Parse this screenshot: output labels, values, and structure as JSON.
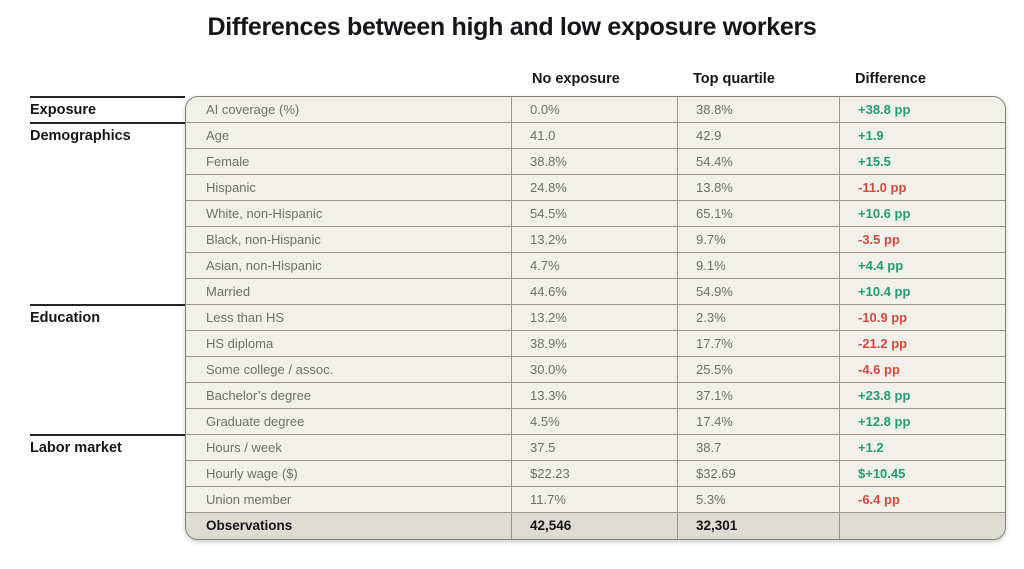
{
  "title": "Differences between high and low exposure workers",
  "colors": {
    "positive": "#279b72",
    "negative": "#d24b41"
  },
  "chart_data": {
    "type": "table",
    "title": "Differences between high and low exposure workers",
    "columns": [
      "No exposure",
      "Top quartile",
      "Difference"
    ],
    "groups": [
      {
        "label": "Exposure",
        "rows": [
          {
            "label": "AI coverage (%)",
            "no_exposure": "0.0%",
            "top_quartile": "38.8%",
            "difference": "+38.8 pp",
            "trend": "positive"
          }
        ]
      },
      {
        "label": "Demographics",
        "rows": [
          {
            "label": "Age",
            "no_exposure": "41.0",
            "top_quartile": "42.9",
            "difference": "+1.9",
            "trend": "positive"
          },
          {
            "label": "Female",
            "no_exposure": "38.8%",
            "top_quartile": "54.4%",
            "difference": "+15.5",
            "trend": "positive"
          },
          {
            "label": "Hispanic",
            "no_exposure": "24.8%",
            "top_quartile": "13.8%",
            "difference": "-11.0 pp",
            "trend": "negative"
          },
          {
            "label": "White, non-Hispanic",
            "no_exposure": "54.5%",
            "top_quartile": "65.1%",
            "difference": "+10.6 pp",
            "trend": "positive"
          },
          {
            "label": "Black, non-Hispanic",
            "no_exposure": "13.2%",
            "top_quartile": "9.7%",
            "difference": "-3.5 pp",
            "trend": "negative"
          },
          {
            "label": "Asian, non-Hispanic",
            "no_exposure": "4.7%",
            "top_quartile": "9.1%",
            "difference": "+4.4 pp",
            "trend": "positive"
          },
          {
            "label": "Married",
            "no_exposure": "44.6%",
            "top_quartile": "54.9%",
            "difference": "+10.4 pp",
            "trend": "positive"
          }
        ]
      },
      {
        "label": "Education",
        "rows": [
          {
            "label": "Less than HS",
            "no_exposure": "13.2%",
            "top_quartile": "2.3%",
            "difference": "-10.9 pp",
            "trend": "negative"
          },
          {
            "label": "HS diploma",
            "no_exposure": "38.9%",
            "top_quartile": "17.7%",
            "difference": "-21.2 pp",
            "trend": "negative"
          },
          {
            "label": "Some college / assoc.",
            "no_exposure": "30.0%",
            "top_quartile": "25.5%",
            "difference": "-4.6 pp",
            "trend": "negative"
          },
          {
            "label": "Bachelor’s degree",
            "no_exposure": "13.3%",
            "top_quartile": "37.1%",
            "difference": "+23.8 pp",
            "trend": "positive"
          },
          {
            "label": "Graduate degree",
            "no_exposure": "4.5%",
            "top_quartile": "17.4%",
            "difference": "+12.8 pp",
            "trend": "positive"
          }
        ]
      },
      {
        "label": "Labor market",
        "rows": [
          {
            "label": "Hours / week",
            "no_exposure": "37.5",
            "top_quartile": "38.7",
            "difference": "+1.2",
            "trend": "positive"
          },
          {
            "label": "Hourly wage ($)",
            "no_exposure": "$22.23",
            "top_quartile": "$32.69",
            "difference": "$+10.45",
            "trend": "positive"
          },
          {
            "label": "Union member",
            "no_exposure": "11.7%",
            "top_quartile": "5.3%",
            "difference": "-6.4 pp",
            "trend": "negative"
          }
        ]
      }
    ],
    "footer_row": {
      "label": "Observations",
      "no_exposure": "42,546",
      "top_quartile": "32,301",
      "difference": ""
    }
  }
}
